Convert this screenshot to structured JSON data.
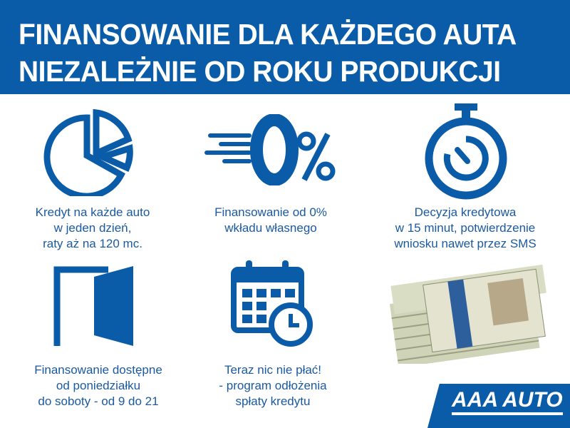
{
  "header": {
    "line1": "FINANSOWANIE DLA KAŻDEGO AUTA",
    "line2": "NIEZALEŻNIE OD ROKU PRODUKCJI"
  },
  "features": [
    {
      "icon": "pie-chart-icon",
      "lines": [
        "Kredyt na każde auto",
        "w jeden dzień,",
        "raty aż na 120 mc."
      ]
    },
    {
      "icon": "zero-percent-icon",
      "lines": [
        "Finansowanie od 0%",
        "wkładu własnego"
      ]
    },
    {
      "icon": "stopwatch-icon",
      "lines": [
        "Decyzja kredytowa",
        "w 15 minut, potwierdzenie",
        "wniosku nawet przez SMS"
      ]
    },
    {
      "icon": "open-door-icon",
      "lines": [
        "Finansowanie dostępne",
        "od poniedziałku",
        "do soboty - od 9 do 21"
      ]
    },
    {
      "icon": "calendar-clock-icon",
      "lines": [
        "Teraz nic nie płać!",
        "- program odłożenia",
        "spłaty kredytu"
      ]
    }
  ],
  "brand": {
    "name": "AAA AUTO",
    "color": "#0a5ca8"
  }
}
